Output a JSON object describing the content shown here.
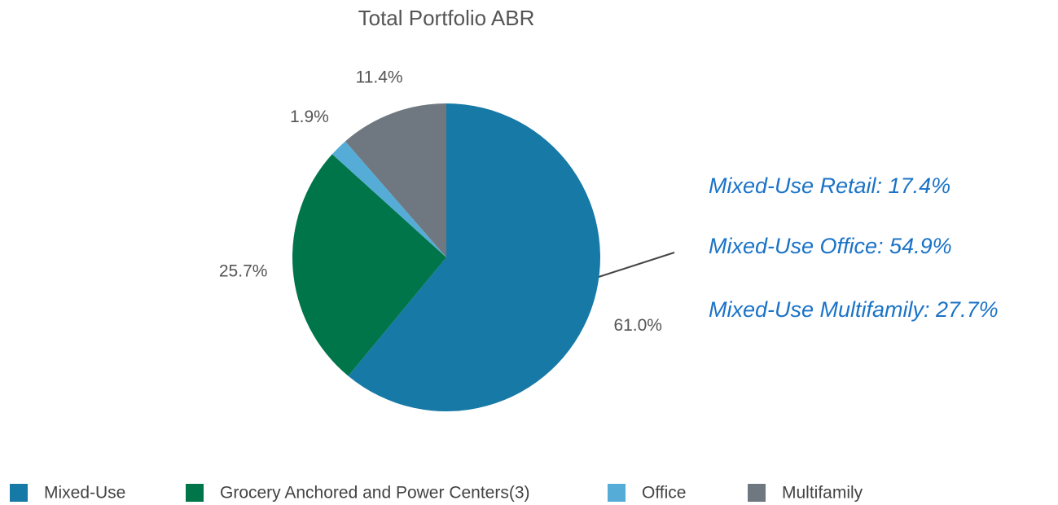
{
  "chart_data": {
    "type": "pie",
    "title": "Total Portfolio ABR",
    "categories": [
      "Mixed-Use",
      "Grocery Anchored and Power Centers(3)",
      "Office",
      "Multifamily"
    ],
    "values": [
      61.0,
      25.7,
      1.9,
      11.4
    ],
    "value_labels": [
      "61.0%",
      "25.7%",
      "1.9%",
      "11.4%"
    ],
    "colors": [
      "#1779a6",
      "#00754a",
      "#55acd6",
      "#6f7880"
    ],
    "annotations": [
      "Mixed-Use Retail: 17.4%",
      "Mixed-Use Office: 54.9%",
      "Mixed-Use Multifamily: 27.7%"
    ],
    "annotation_color": "#1a73c7",
    "legend": "bottom"
  }
}
